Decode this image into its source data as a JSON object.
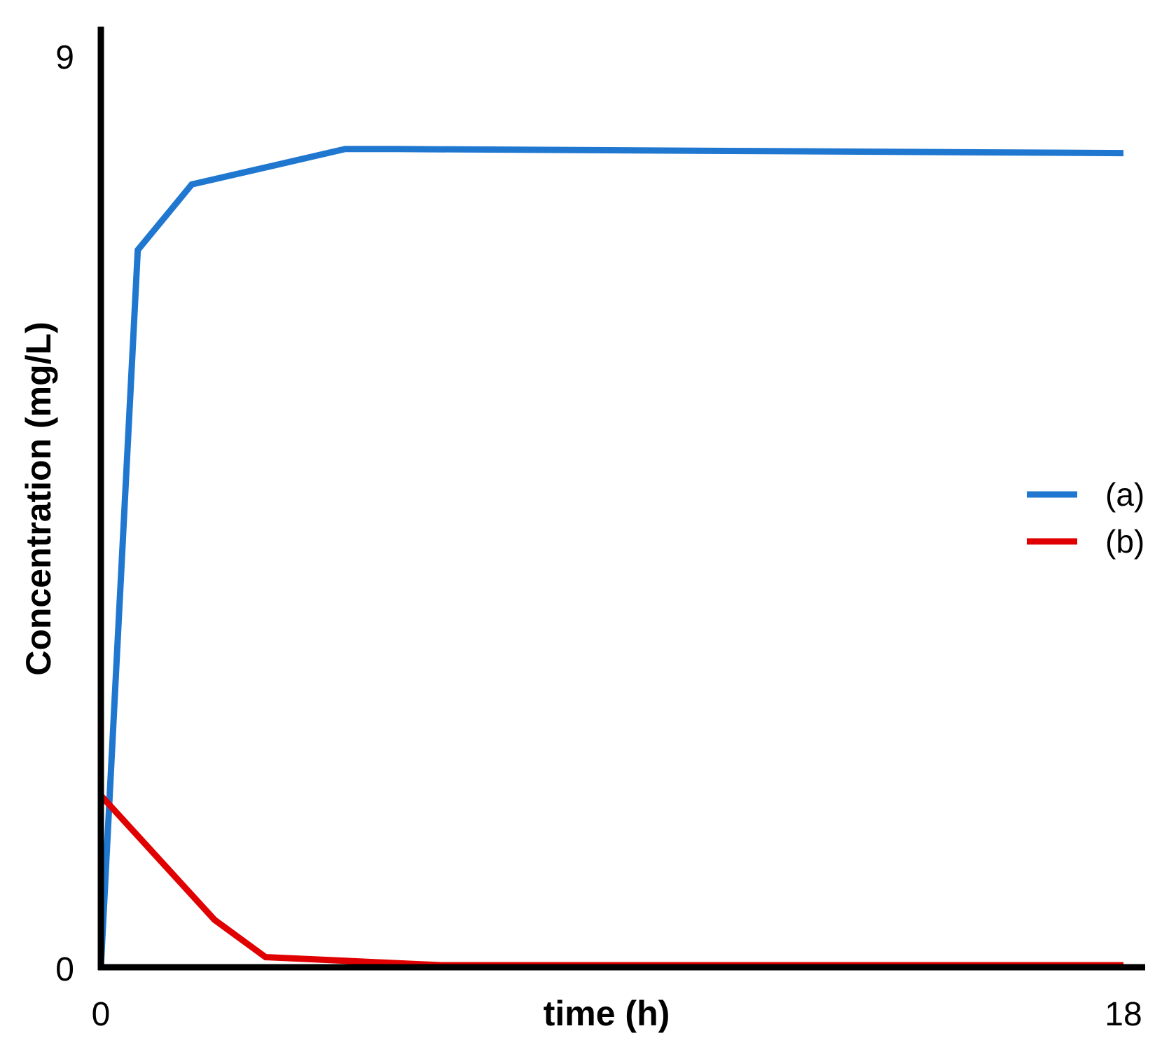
{
  "chart_data": {
    "type": "line",
    "title": "",
    "xlabel": "time (h)",
    "ylabel": "Concentration (mg/L)",
    "xlim": [
      0,
      18
    ],
    "ylim": [
      0,
      9
    ],
    "x_ticks": [
      "0",
      "18"
    ],
    "y_ticks": [
      "0",
      "9"
    ],
    "grid": false,
    "legend_position": "right",
    "series": [
      {
        "name": "(a)",
        "color": "#1f77d0",
        "x": [
          0,
          0.65,
          1.6,
          4.3,
          5.2,
          18
        ],
        "y": [
          0,
          7.1,
          7.75,
          8.1,
          8.1,
          8.06
        ]
      },
      {
        "name": "(b)",
        "color": "#e00000",
        "x": [
          0,
          2.0,
          2.9,
          6.0,
          18
        ],
        "y": [
          1.7,
          0.47,
          0.1,
          0.02,
          0.02
        ]
      }
    ]
  }
}
